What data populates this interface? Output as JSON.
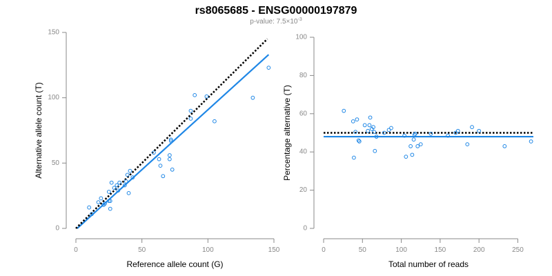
{
  "title": "rs8065685 - ENSG00000197879",
  "subtitle": {
    "prefix": "p-value: 7.5×10",
    "exponent": "-3"
  },
  "colors": {
    "fit": "#1f87e6",
    "points": "#1f87e6",
    "reference": "#000000",
    "axis": "#888888"
  },
  "chart_data": [
    {
      "type": "scatter",
      "xlabel": "Reference allele count (G)",
      "ylabel": "Alternative allele count (T)",
      "xlim": [
        0,
        150
      ],
      "ylim": [
        0,
        150
      ],
      "xticks": [
        0,
        50,
        100,
        150
      ],
      "yticks": [
        0,
        50,
        100,
        150
      ],
      "grid": false,
      "reference_line": {
        "style": "dotted",
        "from": [
          0,
          0
        ],
        "to": [
          145,
          145
        ]
      },
      "fit_line": {
        "style": "solid",
        "from": [
          1,
          0
        ],
        "to": [
          146,
          133
        ]
      },
      "points": [
        [
          10,
          16
        ],
        [
          12,
          11
        ],
        [
          17,
          20
        ],
        [
          19,
          23
        ],
        [
          21,
          18
        ],
        [
          22,
          19
        ],
        [
          25,
          28
        ],
        [
          25,
          21
        ],
        [
          26,
          15
        ],
        [
          26,
          21
        ],
        [
          27,
          35
        ],
        [
          29,
          31
        ],
        [
          31,
          33
        ],
        [
          32,
          29
        ],
        [
          33,
          35
        ],
        [
          37,
          33
        ],
        [
          38,
          36
        ],
        [
          39,
          41
        ],
        [
          40,
          27
        ],
        [
          41,
          44
        ],
        [
          43,
          39
        ],
        [
          59,
          58
        ],
        [
          63,
          53
        ],
        [
          64,
          48
        ],
        [
          66,
          40
        ],
        [
          71,
          56
        ],
        [
          71,
          53
        ],
        [
          72,
          67
        ],
        [
          72,
          68
        ],
        [
          73,
          45
        ],
        [
          87,
          84
        ],
        [
          87,
          90
        ],
        [
          90,
          102
        ],
        [
          99,
          101
        ],
        [
          105,
          82
        ],
        [
          134,
          100
        ],
        [
          146,
          123
        ]
      ]
    },
    {
      "type": "scatter",
      "xlabel": "Total number of reads",
      "ylabel": "Percentage alternative (T)",
      "xlim": [
        0,
        270
      ],
      "ylim": [
        0,
        100
      ],
      "xticks": [
        0,
        50,
        100,
        150,
        200,
        250
      ],
      "yticks": [
        0,
        20,
        40,
        60,
        80,
        100
      ],
      "grid": false,
      "reference_line": {
        "style": "dotted",
        "y": 50,
        "from_x": 0,
        "to_x": 270
      },
      "fit_line": {
        "style": "solid",
        "y": 48,
        "from_x": 0,
        "to_x": 270
      },
      "points": [
        [
          26,
          61.5
        ],
        [
          38,
          56
        ],
        [
          39,
          37
        ],
        [
          41,
          50.5
        ],
        [
          43,
          57
        ],
        [
          45,
          46
        ],
        [
          46,
          45.5
        ],
        [
          53,
          54
        ],
        [
          57,
          51
        ],
        [
          59,
          54
        ],
        [
          60,
          58
        ],
        [
          62,
          52
        ],
        [
          64,
          53
        ],
        [
          65,
          50.5
        ],
        [
          66,
          40.5
        ],
        [
          68,
          48
        ],
        [
          78,
          50
        ],
        [
          84,
          51.5
        ],
        [
          87,
          52.5
        ],
        [
          104,
          48.5
        ],
        [
          106,
          37.5
        ],
        [
          112,
          43
        ],
        [
          114,
          38.5
        ],
        [
          116,
          46.5
        ],
        [
          117,
          49
        ],
        [
          118,
          49.5
        ],
        [
          121,
          43
        ],
        [
          125,
          44
        ],
        [
          138,
          49.5
        ],
        [
          160,
          48.5
        ],
        [
          170,
          50
        ],
        [
          173,
          51
        ],
        [
          185,
          44
        ],
        [
          191,
          53
        ],
        [
          200,
          51
        ],
        [
          233,
          43
        ],
        [
          267,
          45.5
        ]
      ]
    }
  ]
}
